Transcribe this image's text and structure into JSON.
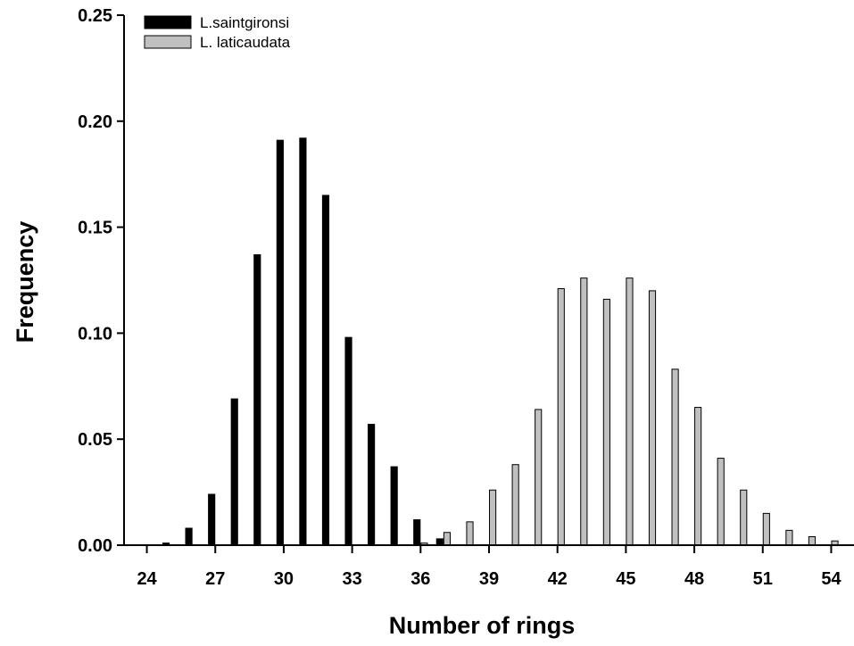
{
  "chart_data": {
    "type": "bar",
    "title": "",
    "xlabel": "Number of rings",
    "ylabel": "Frequency",
    "xlim": [
      23,
      55
    ],
    "ylim": [
      0,
      0.25
    ],
    "x_ticks": [
      24,
      27,
      30,
      33,
      36,
      39,
      42,
      45,
      48,
      51,
      54
    ],
    "y_ticks": [
      "0.00",
      "0.05",
      "0.10",
      "0.15",
      "0.20",
      "0.25"
    ],
    "grid": false,
    "legend_placement": "top-left",
    "series": [
      {
        "name": "L.saintgironsi",
        "color": "#000000",
        "x": [
          25,
          26,
          27,
          28,
          29,
          30,
          31,
          32,
          33,
          34,
          35,
          36,
          37
        ],
        "values": [
          0.001,
          0.008,
          0.024,
          0.069,
          0.137,
          0.191,
          0.192,
          0.165,
          0.098,
          0.057,
          0.037,
          0.012,
          0.003
        ]
      },
      {
        "name": "L. laticaudata",
        "color": "#c0c0c0",
        "x": [
          36,
          37,
          38,
          39,
          40,
          41,
          42,
          43,
          44,
          45,
          46,
          47,
          48,
          49,
          50,
          51,
          52,
          53,
          54
        ],
        "values": [
          0.001,
          0.006,
          0.011,
          0.026,
          0.038,
          0.064,
          0.121,
          0.126,
          0.116,
          0.126,
          0.12,
          0.083,
          0.065,
          0.041,
          0.026,
          0.015,
          0.007,
          0.004,
          0.002
        ]
      }
    ]
  }
}
